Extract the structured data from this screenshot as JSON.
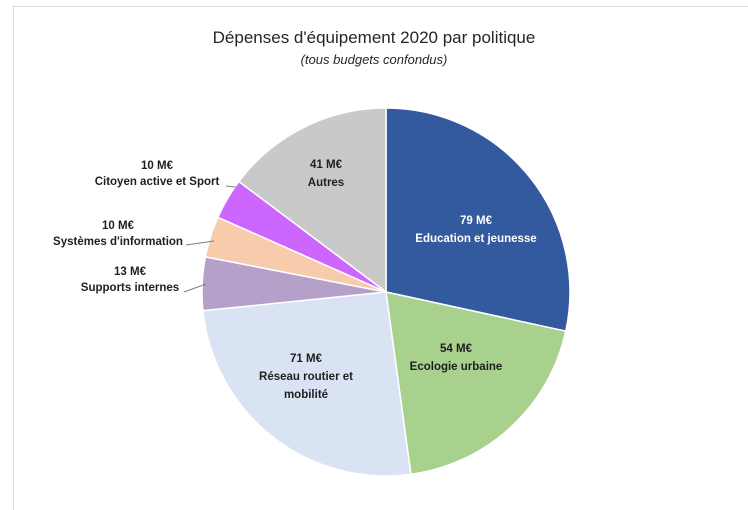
{
  "chart_data": {
    "type": "pie",
    "title": "Dépenses d'équipement 2020 par politique",
    "subtitle": "(tous budgets confondus)",
    "unit": "M€",
    "slices": [
      {
        "label": "Education et jeunesse",
        "value": 79,
        "value_label": "79 M€",
        "color": "#335a9e",
        "label_color": "#ffffff"
      },
      {
        "label": "Ecologie urbaine",
        "value": 54,
        "value_label": "54 M€",
        "color": "#a9d18e",
        "label_color": "#1f1f1f"
      },
      {
        "label": "Réseau routier et mobilité",
        "value": 71,
        "value_label": "71 M€",
        "color": "#dae3f3",
        "label_color": "#1f1f1f"
      },
      {
        "label": "Supports internes",
        "value": 13,
        "value_label": "13 M€",
        "color": "#b4a0c8",
        "label_color": "#1f1f1f"
      },
      {
        "label": "Systèmes d'information",
        "value": 10,
        "value_label": "10 M€",
        "color": "#f8cbad",
        "label_color": "#1f1f1f"
      },
      {
        "label": "Citoyen active et Sport",
        "value": 10,
        "value_label": "10 M€",
        "color": "#cc66ff",
        "label_color": "#1f1f1f"
      },
      {
        "label": "Autres",
        "value": 41,
        "value_label": "41 M€",
        "color": "#c9c9c9",
        "label_color": "#1f1f1f"
      }
    ]
  }
}
